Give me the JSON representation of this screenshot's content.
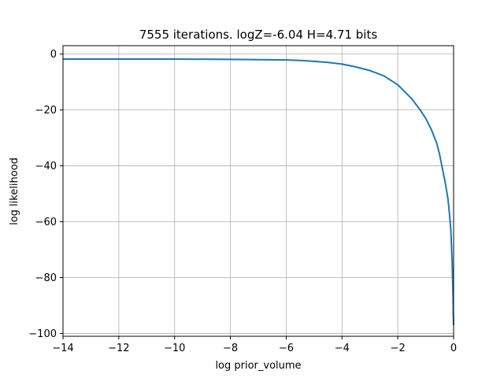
{
  "chart_data": {
    "type": "line",
    "title": "7555 iterations. logZ=-6.04 H=4.71 bits",
    "xlabel": "log prior_volume",
    "ylabel": "log likelihood",
    "xlim": [
      -14,
      0
    ],
    "ylim": [
      -101,
      3
    ],
    "xticks": [
      -14,
      -12,
      -10,
      -8,
      -6,
      -4,
      -2,
      0
    ],
    "xtick_labels": [
      "−14",
      "−12",
      "−10",
      "−8",
      "−6",
      "−4",
      "−2",
      "0"
    ],
    "yticks": [
      0,
      -20,
      -40,
      -60,
      -80,
      -100
    ],
    "ytick_labels": [
      "0",
      "−20",
      "−40",
      "−60",
      "−80",
      "−100"
    ],
    "grid": true,
    "color": "#1f77b4",
    "series": [
      {
        "x": [
          -14,
          -12,
          -10,
          -8,
          -7,
          -6,
          -5.5,
          -5,
          -4.5,
          -4,
          -3.5,
          -3,
          -2.5,
          -2,
          -1.5,
          -1.2,
          -1,
          -0.8,
          -0.6,
          -0.5,
          -0.4,
          -0.3,
          -0.2,
          -0.15,
          -0.1,
          -0.07,
          -0.05,
          -0.03,
          -0.02,
          -0.01,
          0
        ],
        "y": [
          -1.8,
          -1.8,
          -1.8,
          -1.9,
          -2.0,
          -2.1,
          -2.3,
          -2.6,
          -3.0,
          -3.6,
          -4.6,
          -5.9,
          -7.8,
          -11.0,
          -16.0,
          -20.0,
          -23.0,
          -27.0,
          -32.0,
          -36.0,
          -41.0,
          -46.0,
          -52.0,
          -57.0,
          -63.0,
          -70.0,
          -75.0,
          -82.0,
          -87.0,
          -93.0,
          -97.0
        ]
      }
    ]
  }
}
